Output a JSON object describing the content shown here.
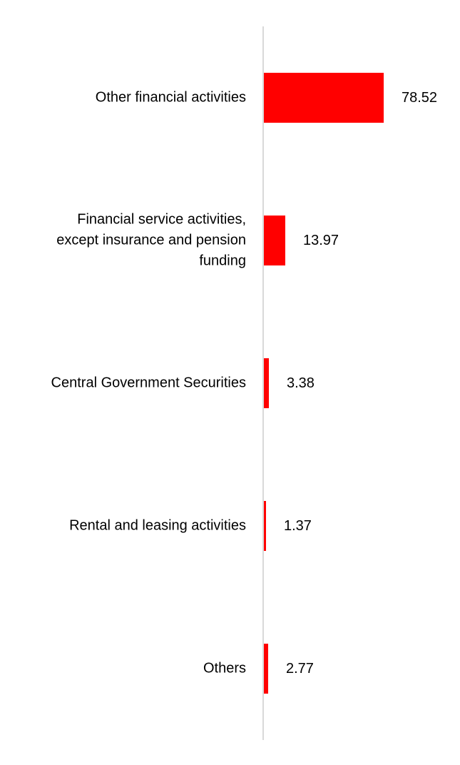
{
  "chart_data": {
    "type": "bar",
    "orientation": "horizontal",
    "title": "",
    "xlabel": "",
    "ylabel": "",
    "grid": false,
    "legend": false,
    "categories": [
      "Other financial activities",
      "Financial service activities, except insurance and pension funding",
      "Central Government Securities",
      "Rental and leasing activities",
      "Others"
    ],
    "wrapped_labels": [
      "Other financial activities",
      "Financial service activities,\nexcept insurance and pension\nfunding",
      "Central Government Securities",
      "Rental and leasing activities",
      "Others"
    ],
    "values": [
      78.52,
      13.97,
      3.38,
      1.37,
      2.77
    ],
    "value_labels": [
      "78.52",
      "13.97",
      "3.38",
      "1.37",
      "2.77"
    ],
    "colors": {
      "bar": "#ff0000",
      "axis_line": "#d9d9d9",
      "text": "#000000",
      "background": "#ffffff"
    }
  }
}
